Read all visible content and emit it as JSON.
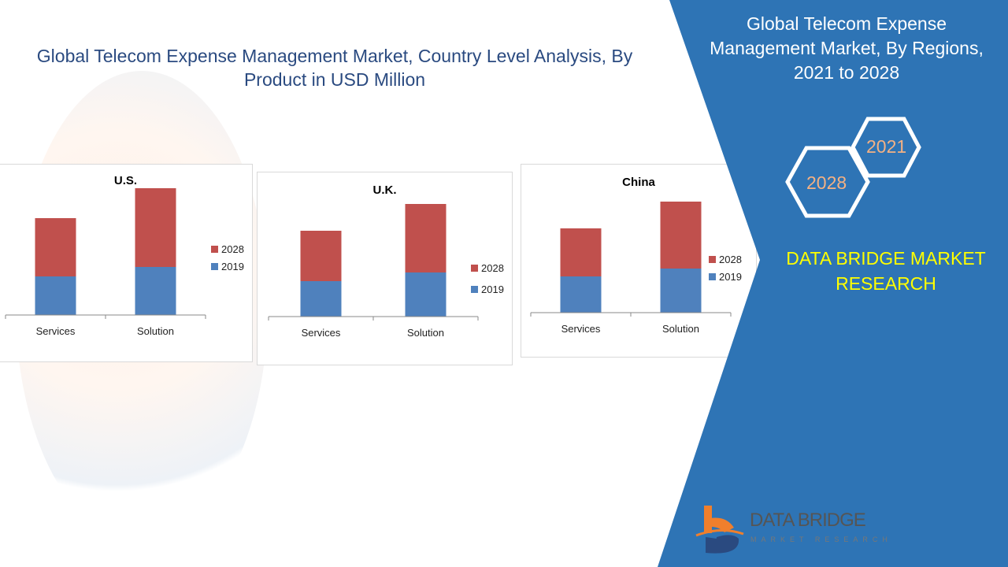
{
  "title": "Global Telecom Expense Management Market, Country Level Analysis, By Product in USD Million",
  "side_title": "Global Telecom Expense Management Market, By Regions, 2021 to 2028",
  "hex_labels": [
    "2021",
    "2028"
  ],
  "brand": "DATA BRIDGE MARKET RESEARCH",
  "logo": {
    "name": "DATA BRIDGE",
    "sub": "MARKET RESEARCH"
  },
  "colors": {
    "s2019": "#4f81bd",
    "s2028": "#c0504d",
    "panel": "#2e74b5",
    "brand": "#ffff00"
  },
  "chart_data": [
    {
      "type": "bar",
      "stacked": true,
      "title": "U.S.",
      "categories": [
        "Services",
        "Solution"
      ],
      "series": [
        {
          "name": "2019",
          "values": [
            49,
            61
          ]
        },
        {
          "name": "2028",
          "values": [
            74,
            100
          ]
        }
      ],
      "legend": "right"
    },
    {
      "type": "bar",
      "stacked": true,
      "title": "U.K.",
      "categories": [
        "Services",
        "Solution"
      ],
      "series": [
        {
          "name": "2019",
          "values": [
            45,
            56
          ]
        },
        {
          "name": "2028",
          "values": [
            64,
            87
          ]
        }
      ],
      "legend": "right"
    },
    {
      "type": "bar",
      "stacked": true,
      "title": "China",
      "categories": [
        "Services",
        "Solution"
      ],
      "series": [
        {
          "name": "2019",
          "values": [
            46,
            56
          ]
        },
        {
          "name": "2028",
          "values": [
            61,
            85
          ]
        }
      ],
      "legend": "right"
    }
  ]
}
